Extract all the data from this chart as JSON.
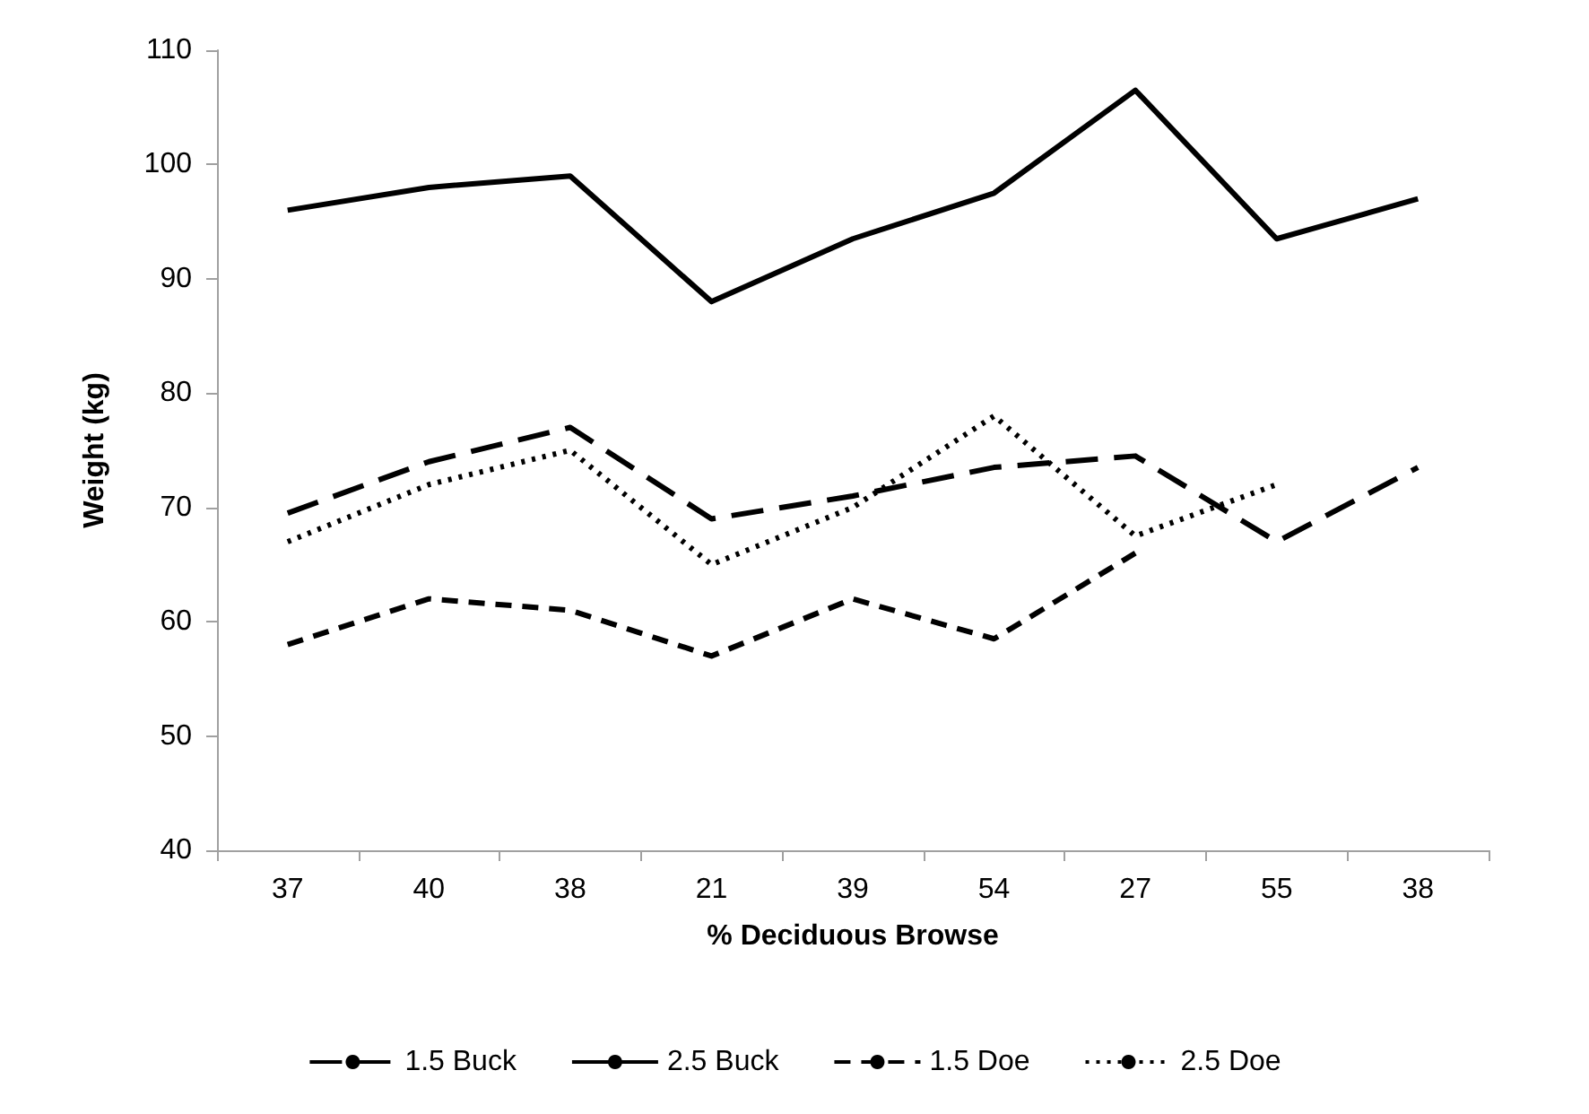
{
  "chart_data": {
    "type": "line",
    "xlabel": "% Deciduous Browse",
    "ylabel": "Weight (kg)",
    "categories": [
      "37",
      "40",
      "38",
      "21",
      "39",
      "54",
      "27",
      "55",
      "38"
    ],
    "ylim": [
      40,
      110
    ],
    "yticks": [
      40,
      50,
      60,
      70,
      80,
      90,
      100,
      110
    ],
    "grid": false,
    "legend": "bottom",
    "marker": "none",
    "series": [
      {
        "name": "1.5 Buck",
        "color": "#000000",
        "line_style": "dashed",
        "values": [
          69.5,
          74,
          77,
          69,
          71,
          73.5,
          74.5,
          67,
          73.5
        ]
      },
      {
        "name": "2.5 Buck",
        "color": "#000000",
        "line_style": "solid",
        "values": [
          96,
          98,
          99,
          88,
          93.5,
          97.5,
          106.5,
          93.5,
          97
        ]
      },
      {
        "name": "1.5 Doe",
        "color": "#000000",
        "line_style": "dashed",
        "values": [
          58,
          62,
          61,
          57,
          62,
          58.5,
          66,
          null,
          null
        ]
      },
      {
        "name": "2.5 Doe",
        "color": "#000000",
        "line_style": "dotted",
        "values": [
          67,
          72,
          75,
          65,
          70,
          78,
          67.5,
          72,
          null
        ]
      }
    ]
  }
}
